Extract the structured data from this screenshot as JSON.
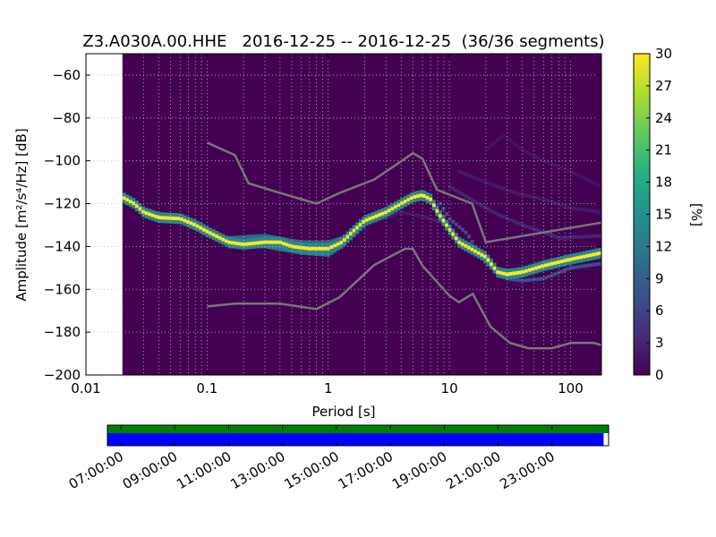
{
  "chart_data": {
    "type": "heatmap",
    "title": "Z3.A030A.00.HHE   2016-12-25 -- 2016-12-25  (36/36 segments)",
    "xlabel": "Period [s]",
    "ylabel": "Amplitude [m²/s⁴/Hz] [dB]",
    "x_scale": "log",
    "xlim": [
      0.01,
      180
    ],
    "ylim": [
      -200,
      -50
    ],
    "x_ticks": [
      0.01,
      0.1,
      1,
      10,
      100
    ],
    "x_tick_labels": [
      "0.01",
      "0.1",
      "1",
      "10",
      "100"
    ],
    "y_ticks": [
      -60,
      -80,
      -100,
      -120,
      -140,
      -160,
      -180,
      -200
    ],
    "y_tick_labels": [
      "−60",
      "−80",
      "−100",
      "−120",
      "−140",
      "−160",
      "−180",
      "−200"
    ],
    "grid": true,
    "data_period_range": [
      0.02,
      180
    ],
    "colorbar": {
      "label": "[%]",
      "range": [
        0,
        30
      ],
      "ticks": [
        0,
        3,
        6,
        9,
        12,
        15,
        18,
        21,
        24,
        27,
        30
      ],
      "tick_labels": [
        "0",
        "3",
        "6",
        "9",
        "12",
        "15",
        "18",
        "21",
        "24",
        "27",
        "30"
      ],
      "colormap": [
        "#440154",
        "#472d7b",
        "#3b528b",
        "#2c728e",
        "#21918c",
        "#28ae80",
        "#5ec962",
        "#addc30",
        "#fde725"
      ]
    },
    "mode_curve": {
      "name": "",
      "points": [
        [
          0.02,
          -117
        ],
        [
          0.025,
          -120
        ],
        [
          0.03,
          -124
        ],
        [
          0.04,
          -126.5
        ],
        [
          0.06,
          -127
        ],
        [
          0.08,
          -130
        ],
        [
          0.1,
          -133
        ],
        [
          0.15,
          -138
        ],
        [
          0.2,
          -139
        ],
        [
          0.3,
          -138
        ],
        [
          0.4,
          -138
        ],
        [
          0.5,
          -140
        ],
        [
          0.7,
          -141
        ],
        [
          1.0,
          -141
        ],
        [
          1.3,
          -138
        ],
        [
          1.6,
          -133
        ],
        [
          2.0,
          -128
        ],
        [
          3.0,
          -124
        ],
        [
          4.0,
          -120
        ],
        [
          5.0,
          -117
        ],
        [
          6.0,
          -116
        ],
        [
          7.0,
          -118
        ],
        [
          8.0,
          -124
        ],
        [
          10.0,
          -132
        ],
        [
          12.0,
          -138
        ],
        [
          15.0,
          -141
        ],
        [
          20.0,
          -145
        ],
        [
          25.0,
          -152
        ],
        [
          30.0,
          -153
        ],
        [
          40.0,
          -152
        ],
        [
          60.0,
          -149
        ],
        [
          100.0,
          -146
        ],
        [
          180.0,
          -143
        ]
      ],
      "color": "#fde725"
    },
    "spread_curves": [
      {
        "points": [
          [
            0.15,
            -140
          ],
          [
            0.3,
            -140
          ],
          [
            0.6,
            -143
          ],
          [
            1.0,
            -144
          ],
          [
            1.3,
            -140
          ],
          [
            2.0,
            -130
          ]
        ],
        "intensity": 12
      },
      {
        "points": [
          [
            0.15,
            -136
          ],
          [
            0.3,
            -135
          ],
          [
            0.6,
            -138
          ],
          [
            1.0,
            -138
          ],
          [
            1.3,
            -136
          ]
        ],
        "intensity": 10
      },
      {
        "points": [
          [
            8.0,
            -118
          ],
          [
            10.0,
            -127
          ],
          [
            14.0,
            -134
          ],
          [
            20.0,
            -148
          ],
          [
            30.0,
            -155
          ],
          [
            40.0,
            -156
          ],
          [
            60.0,
            -155
          ],
          [
            100.0,
            -150
          ],
          [
            180.0,
            -148
          ]
        ],
        "intensity": 7
      },
      {
        "points": [
          [
            10.0,
            -112
          ],
          [
            15.0,
            -118
          ],
          [
            25.0,
            -125
          ],
          [
            40.0,
            -130
          ],
          [
            80.0,
            -136
          ],
          [
            180.0,
            -135
          ]
        ],
        "intensity": 3
      },
      {
        "points": [
          [
            12.0,
            -105
          ],
          [
            20.0,
            -110
          ],
          [
            35.0,
            -115
          ],
          [
            60.0,
            -118
          ],
          [
            100.0,
            -122
          ],
          [
            180.0,
            -124
          ]
        ],
        "intensity": 2
      },
      {
        "points": [
          [
            20.0,
            -95
          ],
          [
            28.0,
            -88
          ],
          [
            40.0,
            -95
          ],
          [
            60.0,
            -100
          ],
          [
            100.0,
            -105
          ],
          [
            180.0,
            -112
          ]
        ],
        "intensity": 1.5
      },
      {
        "points": [
          [
            2.0,
            -130
          ],
          [
            4.0,
            -124
          ],
          [
            6.0,
            -126
          ],
          [
            9.0,
            -129
          ],
          [
            12.0,
            -135
          ]
        ],
        "intensity": 2
      }
    ],
    "reference_models": [
      {
        "name": "",
        "role": "high_noise_model",
        "points": [
          [
            0.1,
            -91.5
          ],
          [
            0.17,
            -97.4
          ],
          [
            0.22,
            -110.5
          ],
          [
            0.4,
            -115
          ],
          [
            0.8,
            -120
          ],
          [
            1.24,
            -115
          ],
          [
            2.4,
            -108.7
          ],
          [
            4.3,
            -99
          ],
          [
            5.0,
            -96.4
          ],
          [
            6.0,
            -99
          ],
          [
            7.9,
            -113.5
          ],
          [
            15.4,
            -120
          ],
          [
            20.0,
            -138
          ],
          [
            354.8,
            -126
          ]
        ],
        "color": "#777777"
      },
      {
        "name": "",
        "role": "low_noise_model",
        "points": [
          [
            0.1,
            -168
          ],
          [
            0.17,
            -166.7
          ],
          [
            0.4,
            -166.7
          ],
          [
            0.8,
            -169.2
          ],
          [
            1.24,
            -163.7
          ],
          [
            2.4,
            -148.6
          ],
          [
            4.3,
            -141.1
          ],
          [
            5.0,
            -141.1
          ],
          [
            6.0,
            -149
          ],
          [
            10.0,
            -163
          ],
          [
            12.0,
            -166
          ],
          [
            15.6,
            -162.1
          ],
          [
            21.9,
            -177.5
          ],
          [
            31.6,
            -185
          ],
          [
            45.0,
            -187.5
          ],
          [
            70.0,
            -187.5
          ],
          [
            101.0,
            -185
          ],
          [
            154.0,
            -185
          ],
          [
            180.0,
            -186
          ]
        ],
        "color": "#777777"
      }
    ],
    "coverage": {
      "time_tick_labels": [
        "07:00:00",
        "09:00:00",
        "11:00:00",
        "13:00:00",
        "15:00:00",
        "17:00:00",
        "19:00:00",
        "21:00:00",
        "23:00:00"
      ],
      "time_ticks_hours": [
        7,
        9,
        11,
        13,
        15,
        17,
        19,
        21,
        23
      ],
      "time_range_hours": [
        6.5,
        25.1
      ],
      "segments_used_fraction_of_range": [
        0.0,
        1.0
      ],
      "data_fraction_of_range": [
        0.0,
        0.99
      ],
      "used_color": "#008000",
      "data_color": "#0000ff"
    }
  }
}
